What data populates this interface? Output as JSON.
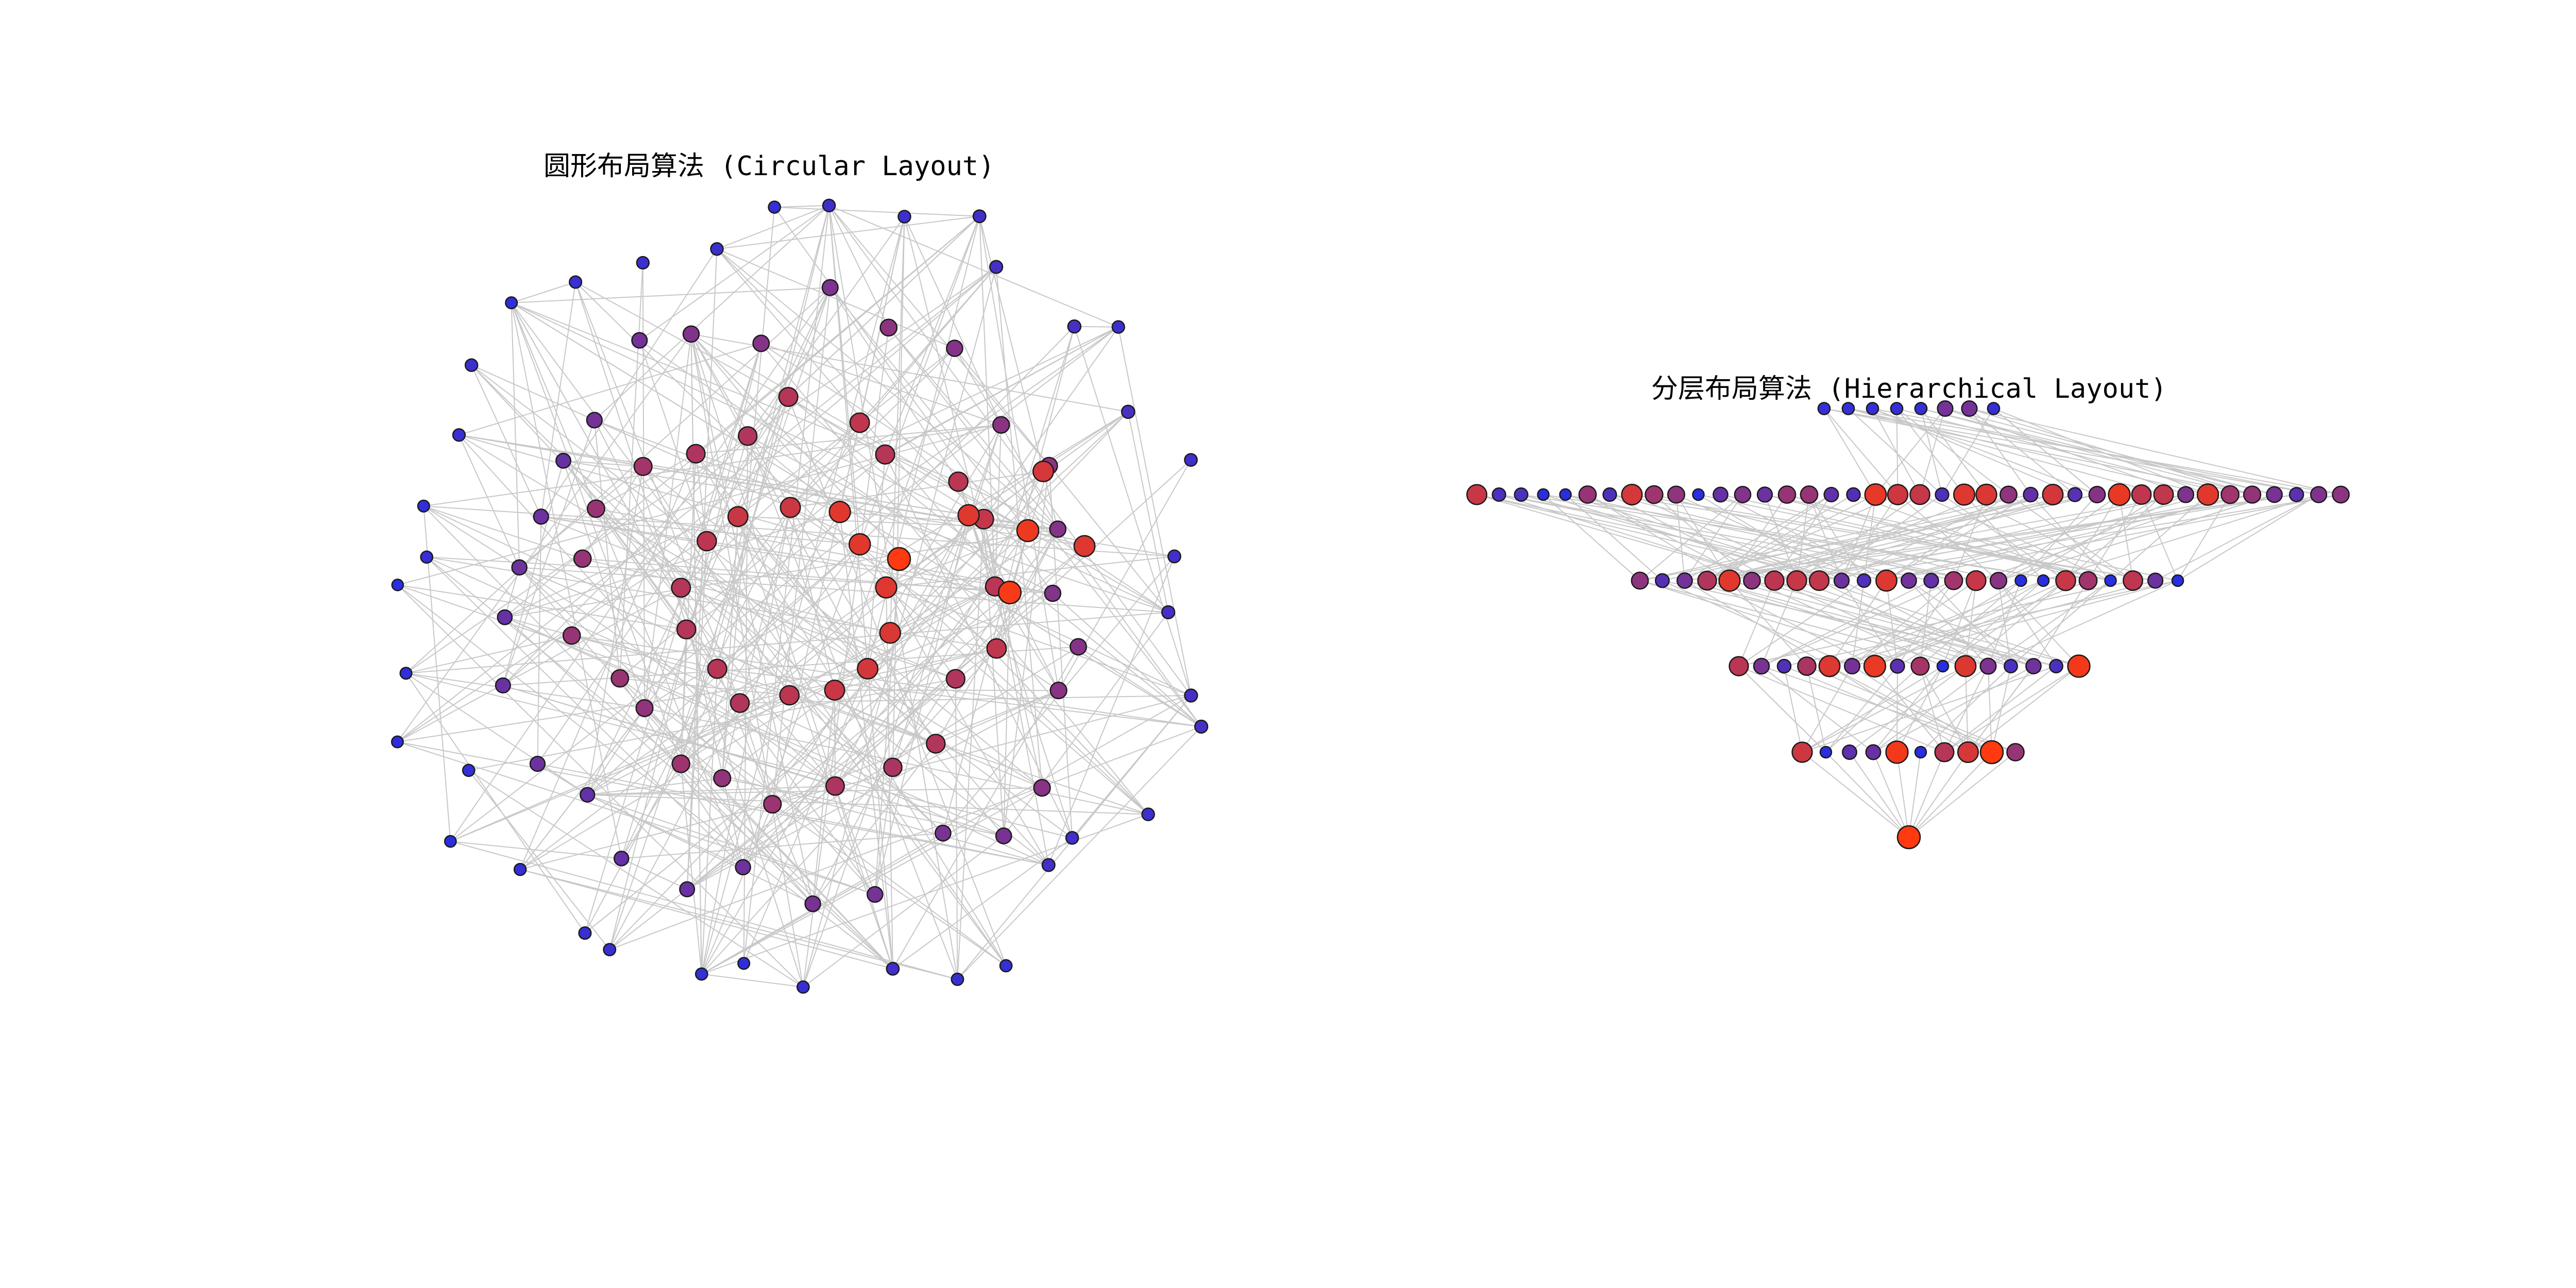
{
  "panels": [
    {
      "id": "circular",
      "title": "圆形布局算法 (Circular Layout)"
    },
    {
      "id": "hierarchical",
      "title": "分层布局算法 (Hierarchical Layout)"
    }
  ],
  "colors": {
    "edge": "#c8c8c8",
    "node_low": "#2a2ee0",
    "node_high": "#ff3a10",
    "node_outline": "#1a1a1a",
    "background": "#ffffff"
  },
  "hierarchical_layers": [
    {
      "level": 0,
      "node_count": 1
    },
    {
      "level": 1,
      "node_count": 10
    },
    {
      "level": 2,
      "node_count": 16
    },
    {
      "level": 3,
      "node_count": 25
    },
    {
      "level": 4,
      "node_count": 40
    },
    {
      "level": 5,
      "node_count": 8
    }
  ]
}
